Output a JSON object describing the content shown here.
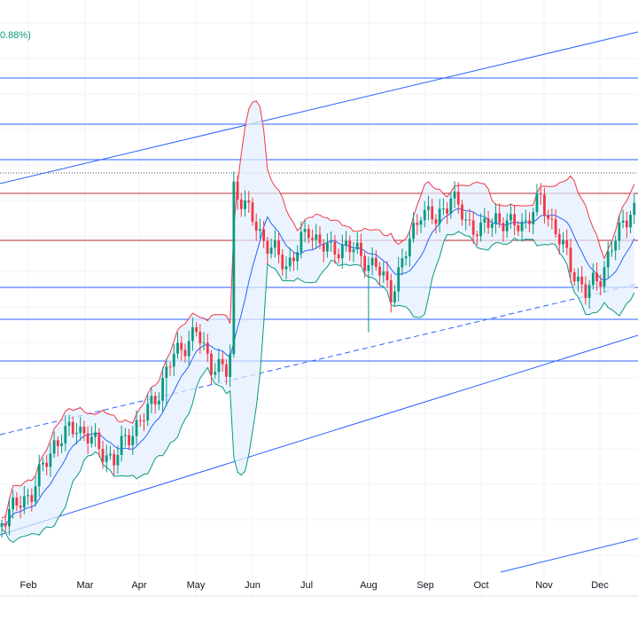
{
  "header": {
    "change_text": "0.88%)"
  },
  "chart_data": {
    "type": "candlestick",
    "x_axis_labels": [
      "Feb",
      "Mar",
      "Apr",
      "May",
      "Jun",
      "Jul",
      "Aug",
      "Sep",
      "Oct",
      "Nov",
      "Dec"
    ],
    "indicators": [
      "bollinger_bands"
    ],
    "colors": {
      "up": "#089981",
      "down": "#f23645",
      "upper_band": "#f23645",
      "middle_band": "#2962ff",
      "lower_band": "#089981",
      "band_fill": "#e3effd",
      "horizontal_levels_blue": "#2962ff",
      "horizontal_levels_red": "#b22833",
      "trendlines": "#2962ff"
    },
    "overlays": {
      "horizontal_levels": 9,
      "trend_channel": "ascending",
      "dashed_midline": true
    },
    "grid": true
  }
}
